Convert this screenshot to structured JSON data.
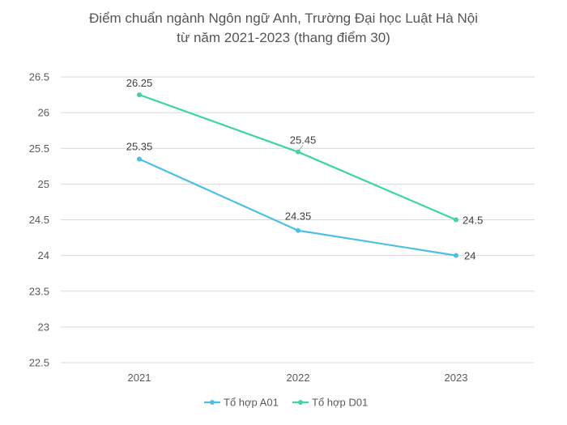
{
  "chart_data": {
    "type": "line",
    "title": "Điểm chuẩn ngành Ngôn ngữ Anh, Trường Đại học Luật Hà Nội",
    "subtitle": "từ năm 2021-2023 (thang điểm 30)",
    "categories": [
      "2021",
      "2022",
      "2023"
    ],
    "series": [
      {
        "name": "Tổ hợp A01",
        "color": "#4dbfe6",
        "values": [
          25.35,
          24.35,
          24
        ],
        "labels": [
          "25.35",
          "24.35",
          "24"
        ]
      },
      {
        "name": "Tổ hợp D01",
        "color": "#3fd4a0",
        "values": [
          26.25,
          25.45,
          24.5
        ],
        "labels": [
          "26.25",
          "25.45",
          "24.5"
        ]
      }
    ],
    "ylim": [
      22.5,
      26.5
    ],
    "yticks": [
      "22.5",
      "23",
      "23.5",
      "24",
      "24.5",
      "25",
      "25.5",
      "26",
      "26.5"
    ],
    "xlabel": "",
    "ylabel": "",
    "grid": true,
    "legend": "bottom"
  }
}
